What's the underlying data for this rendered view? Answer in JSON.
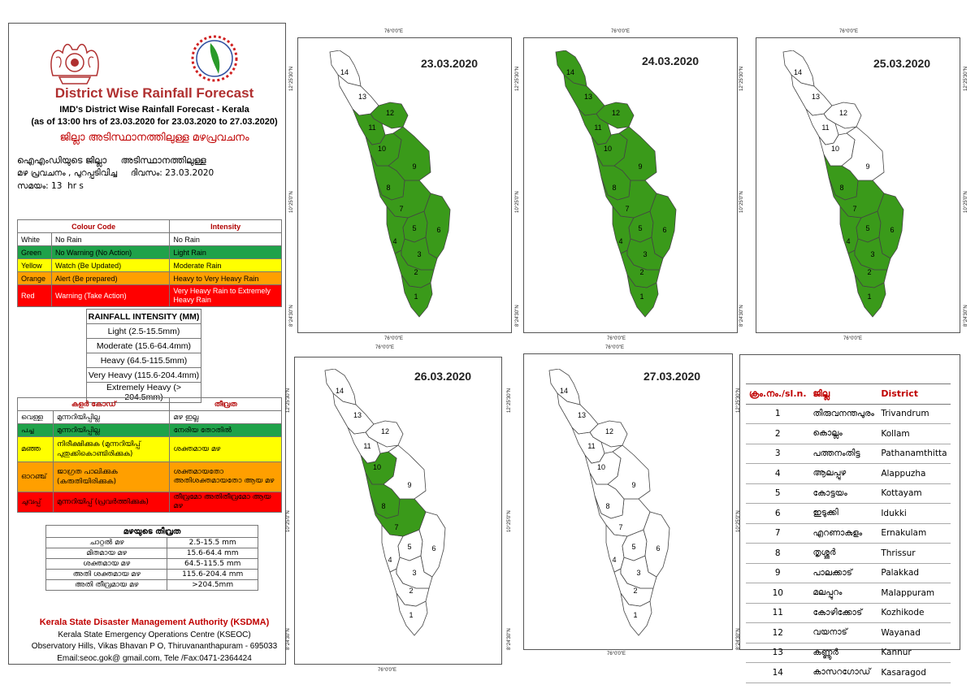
{
  "header": {
    "title": "District Wise Rainfall Forecast",
    "subtitle": "IMD's District Wise Rainfall Forecast - Kerala",
    "validity": "(as of 13:00 hrs of 23.03.2020  for 23.03.2020  to 27.03.2020)",
    "title_ml": "ജില്ലാ അടിസ്ഥാനത്തിലുള്ള മഴപ്രവചനം",
    "ml_line1": "ഐഎംഡിയുടെ ജില്ലാ     അടിസ്ഥാനത്തിലുള്ള",
    "ml_line2": "മഴ പ്രവചനം , പുറപ്പടിവിച്ച     ദിവസം: 23.03.2020",
    "ml_line3": "സമയം: 13  hr s"
  },
  "colour_code": {
    "header_colour": "Colour Code",
    "header_intensity": "Intensity",
    "rows": [
      {
        "colour": "White",
        "code": "No Rain",
        "intensity": "No Rain",
        "bg": "#ffffff"
      },
      {
        "colour": "Green",
        "code": "No Warning (No Action)",
        "intensity": "Light Rain",
        "bg": "#1fa24a"
      },
      {
        "colour": "Yellow",
        "code": "Watch (Be Updated)",
        "intensity": "Moderate Rain",
        "bg": "#ffff00"
      },
      {
        "colour": "Orange",
        "code": "Alert (Be prepared)",
        "intensity": "Heavy to Very Heavy Rain",
        "bg": "#ff9f00"
      },
      {
        "colour": "Red",
        "code": "Warning (Take Action)",
        "intensity": "Very Heavy Rain to Extremely Heavy Rain",
        "bg": "#ff0000"
      }
    ]
  },
  "rainfall_intensity": {
    "header": "RAINFALL INTENSITY (MM)",
    "rows": [
      "Light (2.5-15.5mm)",
      "Moderate (15.6-64.4mm)",
      "Heavy (64.5-115.5mm)",
      "Very Heavy (115.6-204.4mm)",
      "Extremely Heavy (> 204.5mm)"
    ]
  },
  "colour_code_ml": {
    "header_colour": "കളർ കോഡ്",
    "header_intensity": "തീവ്രത",
    "rows": [
      {
        "colour": "വെള്ള",
        "code": "മുന്നറിയിപ്പില്ല",
        "intensity": "മഴ ഇല്ല",
        "bg": "#ffffff"
      },
      {
        "colour": "പച്ച",
        "code": "മുന്നറിയിപ്പില്ല",
        "intensity": "നേരിയ തോതിൽ",
        "bg": "#1fa24a"
      },
      {
        "colour": "മഞ്ഞ",
        "code": "നിരീക്ഷിക്കുക (മുന്നറിയിപ്പ് പുതുക്കികൊണ്ടിരിക്കുക)",
        "intensity": "ശക്തമായ മഴ",
        "bg": "#ffff00"
      },
      {
        "colour": "ഓറഞ്ച്",
        "code": "ജാഗ്രത പാലിക്കുക (കരുതിയിരിക്കുക)",
        "intensity": "ശക്തമായതോ അതിശക്തമായതോ ആയ മഴ",
        "bg": "#ff9f00"
      },
      {
        "colour": "ചുവപ്പ്",
        "code": "മുന്നറിയിപ്പ് (പ്രവർത്തിക്കുക)",
        "intensity": "തീവ്രമോ അതിതീവ്രമോ ആയ മഴ",
        "bg": "#ff0000"
      }
    ]
  },
  "intensity_ml": {
    "header": "മഴയുടെ തീവ്രത",
    "rows": [
      {
        "label": "ചാറ്റൽ മഴ",
        "range": "2.5-15.5 mm"
      },
      {
        "label": "മിതമായ മഴ",
        "range": "15.6-64.4 mm"
      },
      {
        "label": "ശക്തമായ മഴ",
        "range": "64.5-115.5 mm"
      },
      {
        "label": "അതി ശക്തമായ മഴ",
        "range": "115.6-204.4 mm"
      },
      {
        "label": "അതി തീവ്രമായ മഴ",
        "range": ">204.5mm"
      }
    ]
  },
  "footer": {
    "org": "Kerala State Disaster Management Authority (KSDMA)",
    "centre": "Kerala State Emergency Operations Centre (KSEOC)",
    "address": "Observatory Hills, Vikas Bhavan P O, Thiruvananthapuram - 695033",
    "contact": "Email:seoc.gok@ gmail.com, Tele /Fax:0471-2364424"
  },
  "map_labels": {
    "lon": "76°0'0\"E",
    "lat_top": "12°25'30\"N",
    "lat_mid": "10°25'0\"N",
    "lat_bot": "8°24'30\"N"
  },
  "maps": [
    {
      "date": "23.03.2020",
      "green": [
        1,
        2,
        3,
        4,
        5,
        6,
        7,
        8,
        9,
        10,
        11,
        12
      ]
    },
    {
      "date": "24.03.2020",
      "green": [
        1,
        2,
        3,
        4,
        5,
        6,
        7,
        8,
        9,
        10,
        11,
        12,
        13,
        14
      ]
    },
    {
      "date": "25.03.2020",
      "green": [
        1,
        2,
        3,
        4,
        5,
        6,
        7,
        8
      ]
    },
    {
      "date": "26.03.2020",
      "green": [
        7,
        8,
        10
      ]
    },
    {
      "date": "27.03.2020",
      "green": []
    }
  ],
  "colors": {
    "green": "#3a9a1a",
    "white": "#ffffff",
    "title_red": "#b03030",
    "header_red": "#c00000"
  },
  "districts": {
    "headers": {
      "no": "ക്രം.നം./sl.n.",
      "ml": "ജില്ല",
      "en": "District"
    },
    "rows": [
      {
        "no": "1",
        "ml": "തിരുവനന്തപുരം",
        "en": "Trivandrum"
      },
      {
        "no": "2",
        "ml": "കൊല്ലം",
        "en": "Kollam"
      },
      {
        "no": "3",
        "ml": "പത്തനംതിട്ട",
        "en": "Pathanamthitta"
      },
      {
        "no": "4",
        "ml": "ആലപ്പുഴ",
        "en": "Alappuzha"
      },
      {
        "no": "5",
        "ml": "കോട്ടയം",
        "en": "Kottayam"
      },
      {
        "no": "6",
        "ml": "ഇടുക്കി",
        "en": "Idukki"
      },
      {
        "no": "7",
        "ml": "എറണാകുളം",
        "en": "Ernakulam"
      },
      {
        "no": "8",
        "ml": "തൃശ്ശൂർ",
        "en": "Thrissur"
      },
      {
        "no": "9",
        "ml": "പാലക്കാട്",
        "en": "Palakkad"
      },
      {
        "no": "10",
        "ml": "മലപ്പുറം",
        "en": "Malappuram"
      },
      {
        "no": "11",
        "ml": "കോഴിക്കോട്",
        "en": "Kozhikode"
      },
      {
        "no": "12",
        "ml": "വയനാട്",
        "en": "Wayanad"
      },
      {
        "no": "13",
        "ml": "കണ്ണൂർ",
        "en": "Kannur"
      },
      {
        "no": "14",
        "ml": "കാസറഗോഡ്",
        "en": "Kasaragod"
      }
    ]
  }
}
